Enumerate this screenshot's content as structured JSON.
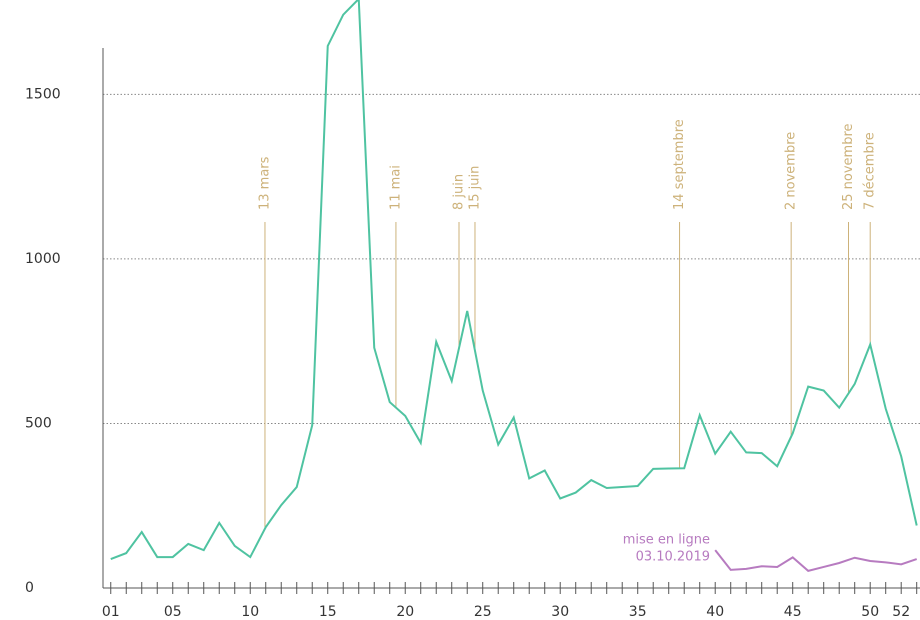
{
  "chart_data": {
    "type": "line",
    "x": [
      1,
      2,
      3,
      4,
      5,
      6,
      7,
      8,
      9,
      10,
      11,
      12,
      13,
      14,
      15,
      16,
      17,
      18,
      19,
      20,
      21,
      22,
      23,
      24,
      25,
      26,
      27,
      28,
      29,
      30,
      31,
      32,
      33,
      34,
      35,
      36,
      37,
      38,
      39,
      40,
      41,
      42,
      43,
      44,
      45,
      46,
      47,
      48,
      49,
      50,
      51,
      52,
      53
    ],
    "series": [
      {
        "color": "#4fc3a1",
        "values": [
          88,
          106,
          170,
          94,
          94,
          134,
          115,
          198,
          128,
          94,
          185,
          252,
          307,
          495,
          1647,
          1742,
          1790,
          730,
          565,
          523,
          441,
          748,
          629,
          842,
          600,
          436,
          518,
          333,
          357,
          272,
          290,
          328,
          304,
          307,
          310,
          362,
          363,
          364,
          525,
          408,
          475,
          412,
          410,
          370,
          470,
          612,
          600,
          548,
          620,
          740,
          545,
          400,
          190
        ]
      },
      {
        "color": "#b77bc0",
        "values": [
          null,
          null,
          null,
          null,
          null,
          null,
          null,
          null,
          null,
          null,
          null,
          null,
          null,
          null,
          null,
          null,
          null,
          null,
          null,
          null,
          null,
          null,
          null,
          null,
          null,
          null,
          null,
          null,
          null,
          null,
          null,
          null,
          null,
          null,
          null,
          null,
          null,
          null,
          null,
          115,
          55,
          58,
          66,
          64,
          93,
          52,
          64,
          76,
          92,
          82,
          78,
          72,
          88
        ]
      }
    ],
    "xlim": [
      0.5,
      53.6
    ],
    "ylim": [
      0,
      1650
    ],
    "yticks": [
      0,
      500,
      1000,
      1500
    ],
    "xticks": [
      {
        "value": 1,
        "label": "01"
      },
      {
        "value": 5,
        "label": "05"
      },
      10,
      15,
      20,
      25,
      30,
      35,
      40,
      45,
      50,
      52
    ],
    "grid": true,
    "annotations": [
      {
        "text": "13 mars",
        "x": 10.95
      },
      {
        "text": "11 mai",
        "x": 19.4
      },
      {
        "text": "8 juin",
        "x": 23.47
      },
      {
        "text": "15 juin",
        "x": 24.5
      },
      {
        "text": "14 septembre",
        "x": 37.7
      },
      {
        "text": "2 novembre",
        "x": 44.9
      },
      {
        "text": "25 novembre",
        "x": 48.6
      },
      {
        "text": "7 décembre",
        "x": 50
      }
    ],
    "series_note": [
      "mise en ligne",
      "03.10.2019"
    ]
  }
}
